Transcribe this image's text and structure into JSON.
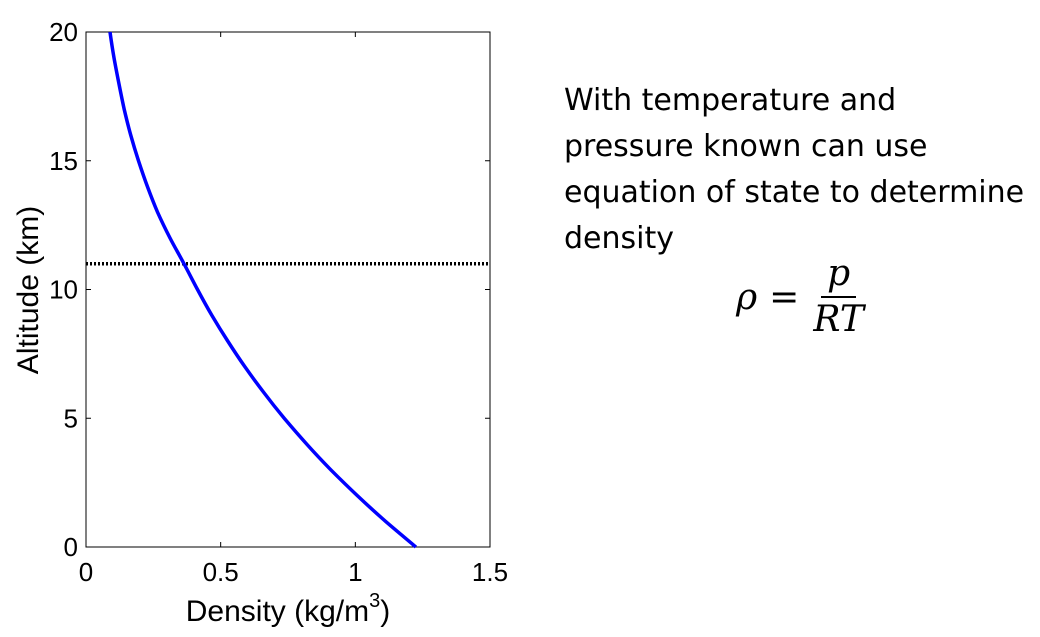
{
  "chart_data": {
    "type": "line",
    "xlabel": "Density (kg/m",
    "xlabel_sup": "3",
    "xlabel_close": ")",
    "ylabel": "Altitude (km)",
    "xlim": [
      0,
      1.5
    ],
    "ylim": [
      0,
      20
    ],
    "xticks": [
      {
        "value": 0,
        "label": "0"
      },
      {
        "value": 0.5,
        "label": "0.5"
      },
      {
        "value": 1,
        "label": "1"
      },
      {
        "value": 1.5,
        "label": "1.5"
      }
    ],
    "yticks": [
      {
        "value": 0,
        "label": "0"
      },
      {
        "value": 5,
        "label": "5"
      },
      {
        "value": 10,
        "label": "10"
      },
      {
        "value": 15,
        "label": "15"
      },
      {
        "value": 20,
        "label": "20"
      }
    ],
    "grid": false,
    "series": [
      {
        "color": "#0000ff",
        "x": [
          1.225,
          1.112,
          1.007,
          0.909,
          0.819,
          0.736,
          0.66,
          0.59,
          0.526,
          0.467,
          0.414,
          0.364,
          0.312,
          0.266,
          0.228,
          0.195,
          0.166,
          0.142,
          0.122,
          0.104,
          0.089
        ],
        "y": [
          0,
          1,
          2,
          3,
          4,
          5,
          6,
          7,
          8,
          9,
          10,
          11,
          12,
          13,
          14,
          15,
          16,
          17,
          18,
          19,
          20
        ]
      }
    ],
    "reference_lines": [
      {
        "orientation": "horizontal",
        "y": 11,
        "style": "dotted",
        "color": "#000000"
      }
    ]
  },
  "explanation": {
    "lines": [
      "With temperature and",
      "pressure known can use",
      "equation of state to determine",
      "density"
    ]
  },
  "formula": {
    "lhs": "ρ",
    "equals": "=",
    "numerator": "p",
    "denominator": "RT"
  }
}
